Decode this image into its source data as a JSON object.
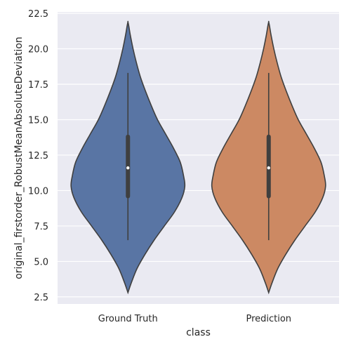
{
  "chart_data": {
    "type": "violin",
    "xlabel": "class",
    "ylabel": "original_firstorder_RobustMeanAbsoluteDeviation",
    "ylim": [
      2.0,
      22.6
    ],
    "yticks": [
      2.5,
      5.0,
      7.5,
      10.0,
      12.5,
      15.0,
      17.5,
      20.0,
      22.5
    ],
    "ytick_labels": [
      "2.5",
      "5.0",
      "7.5",
      "10.0",
      "12.5",
      "15.0",
      "17.5",
      "20.0",
      "22.5"
    ],
    "grid": true,
    "background": "#eaeaf2",
    "categories": [
      "Ground Truth",
      "Prediction"
    ],
    "series": [
      {
        "category": "Ground Truth",
        "color": "#5975a4",
        "min": 6.5,
        "q1": 9.6,
        "median": 11.6,
        "q3": 13.8,
        "max": 18.3,
        "kde_min": 2.8,
        "kde_max": 21.9,
        "density_profile": [
          [
            2.8,
            0.0
          ],
          [
            3.5,
            0.06
          ],
          [
            4.5,
            0.16
          ],
          [
            5.5,
            0.3
          ],
          [
            6.5,
            0.46
          ],
          [
            7.5,
            0.64
          ],
          [
            8.5,
            0.82
          ],
          [
            9.5,
            0.95
          ],
          [
            10.3,
            1.0
          ],
          [
            11.0,
            0.98
          ],
          [
            12.0,
            0.92
          ],
          [
            13.0,
            0.8
          ],
          [
            14.0,
            0.66
          ],
          [
            15.0,
            0.52
          ],
          [
            16.0,
            0.41
          ],
          [
            17.0,
            0.31
          ],
          [
            18.0,
            0.22
          ],
          [
            19.0,
            0.15
          ],
          [
            20.0,
            0.09
          ],
          [
            21.0,
            0.04
          ],
          [
            21.6,
            0.015
          ],
          [
            21.9,
            0.0
          ]
        ]
      },
      {
        "category": "Prediction",
        "color": "#cc8963",
        "min": 6.5,
        "q1": 9.6,
        "median": 11.6,
        "q3": 13.8,
        "max": 18.3,
        "kde_min": 2.8,
        "kde_max": 21.9,
        "density_profile": [
          [
            2.8,
            0.0
          ],
          [
            3.5,
            0.06
          ],
          [
            4.5,
            0.16
          ],
          [
            5.5,
            0.3
          ],
          [
            6.5,
            0.46
          ],
          [
            7.5,
            0.64
          ],
          [
            8.5,
            0.82
          ],
          [
            9.5,
            0.95
          ],
          [
            10.3,
            1.0
          ],
          [
            11.0,
            0.98
          ],
          [
            12.0,
            0.92
          ],
          [
            13.0,
            0.8
          ],
          [
            14.0,
            0.66
          ],
          [
            15.0,
            0.52
          ],
          [
            16.0,
            0.41
          ],
          [
            17.0,
            0.31
          ],
          [
            18.0,
            0.22
          ],
          [
            19.0,
            0.15
          ],
          [
            20.0,
            0.09
          ],
          [
            21.0,
            0.04
          ],
          [
            21.6,
            0.015
          ],
          [
            21.9,
            0.0
          ]
        ]
      }
    ]
  }
}
